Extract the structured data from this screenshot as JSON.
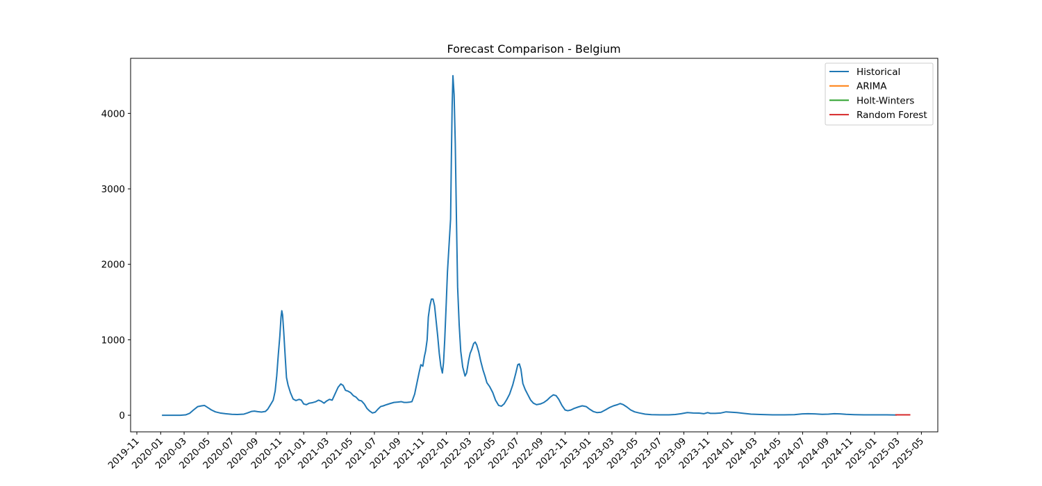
{
  "chart_data": {
    "type": "line",
    "title": "Forecast Comparison - Belgium",
    "xlabel": "",
    "ylabel": "",
    "x_ticks": [
      "2019-11",
      "2020-01",
      "2020-03",
      "2020-05",
      "2020-07",
      "2020-09",
      "2020-11",
      "2021-01",
      "2021-03",
      "2021-05",
      "2021-07",
      "2021-09",
      "2021-11",
      "2022-01",
      "2022-03",
      "2022-05",
      "2022-07",
      "2022-09",
      "2022-11",
      "2023-01",
      "2023-03",
      "2023-05",
      "2023-07",
      "2023-09",
      "2023-11",
      "2024-01",
      "2024-03",
      "2024-05",
      "2024-07",
      "2024-09",
      "2024-11",
      "2025-01",
      "2025-03",
      "2025-05"
    ],
    "y_ticks": [
      0,
      1000,
      2000,
      3000,
      4000
    ],
    "xlim": [
      "2019-10-16",
      "2025-06-12"
    ],
    "ylim": [
      -220,
      4730
    ],
    "grid": false,
    "legend_position": "top-right",
    "series": [
      {
        "name": "Historical",
        "color": "#1f77b4",
        "points": [
          [
            "2020-01-06",
            0
          ],
          [
            "2020-02-01",
            0
          ],
          [
            "2020-02-20",
            0
          ],
          [
            "2020-03-05",
            5
          ],
          [
            "2020-03-15",
            25
          ],
          [
            "2020-03-25",
            70
          ],
          [
            "2020-04-05",
            115
          ],
          [
            "2020-04-15",
            125
          ],
          [
            "2020-04-22",
            130
          ],
          [
            "2020-05-01",
            100
          ],
          [
            "2020-05-10",
            70
          ],
          [
            "2020-05-20",
            45
          ],
          [
            "2020-06-01",
            30
          ],
          [
            "2020-06-15",
            20
          ],
          [
            "2020-07-01",
            12
          ],
          [
            "2020-07-15",
            10
          ],
          [
            "2020-08-01",
            15
          ],
          [
            "2020-08-10",
            30
          ],
          [
            "2020-08-20",
            50
          ],
          [
            "2020-08-28",
            55
          ],
          [
            "2020-09-05",
            48
          ],
          [
            "2020-09-15",
            42
          ],
          [
            "2020-09-25",
            50
          ],
          [
            "2020-10-01",
            80
          ],
          [
            "2020-10-07",
            130
          ],
          [
            "2020-10-15",
            200
          ],
          [
            "2020-10-20",
            320
          ],
          [
            "2020-10-24",
            520
          ],
          [
            "2020-10-28",
            800
          ],
          [
            "2020-11-01",
            1050
          ],
          [
            "2020-11-04",
            1300
          ],
          [
            "2020-11-06",
            1385
          ],
          [
            "2020-11-08",
            1330
          ],
          [
            "2020-11-11",
            1100
          ],
          [
            "2020-11-15",
            750
          ],
          [
            "2020-11-18",
            500
          ],
          [
            "2020-11-22",
            400
          ],
          [
            "2020-11-28",
            300
          ],
          [
            "2020-12-05",
            215
          ],
          [
            "2020-12-12",
            195
          ],
          [
            "2020-12-20",
            210
          ],
          [
            "2020-12-26",
            200
          ],
          [
            "2021-01-01",
            150
          ],
          [
            "2021-01-08",
            140
          ],
          [
            "2021-01-15",
            160
          ],
          [
            "2021-01-22",
            165
          ],
          [
            "2021-02-01",
            180
          ],
          [
            "2021-02-08",
            200
          ],
          [
            "2021-02-15",
            185
          ],
          [
            "2021-02-22",
            160
          ],
          [
            "2021-03-01",
            190
          ],
          [
            "2021-03-08",
            210
          ],
          [
            "2021-03-15",
            200
          ],
          [
            "2021-03-22",
            280
          ],
          [
            "2021-03-30",
            370
          ],
          [
            "2021-04-06",
            415
          ],
          [
            "2021-04-12",
            395
          ],
          [
            "2021-04-18",
            330
          ],
          [
            "2021-04-24",
            320
          ],
          [
            "2021-05-01",
            300
          ],
          [
            "2021-05-08",
            260
          ],
          [
            "2021-05-15",
            240
          ],
          [
            "2021-05-22",
            200
          ],
          [
            "2021-05-29",
            190
          ],
          [
            "2021-06-05",
            150
          ],
          [
            "2021-06-12",
            90
          ],
          [
            "2021-06-19",
            55
          ],
          [
            "2021-06-26",
            30
          ],
          [
            "2021-07-03",
            40
          ],
          [
            "2021-07-10",
            80
          ],
          [
            "2021-07-17",
            115
          ],
          [
            "2021-07-24",
            125
          ],
          [
            "2021-08-01",
            140
          ],
          [
            "2021-08-10",
            155
          ],
          [
            "2021-08-20",
            170
          ],
          [
            "2021-08-30",
            175
          ],
          [
            "2021-09-08",
            180
          ],
          [
            "2021-09-15",
            170
          ],
          [
            "2021-09-22",
            170
          ],
          [
            "2021-09-30",
            175
          ],
          [
            "2021-10-05",
            180
          ],
          [
            "2021-10-12",
            280
          ],
          [
            "2021-10-18",
            430
          ],
          [
            "2021-10-24",
            580
          ],
          [
            "2021-10-28",
            670
          ],
          [
            "2021-11-02",
            650
          ],
          [
            "2021-11-06",
            780
          ],
          [
            "2021-11-09",
            850
          ],
          [
            "2021-11-13",
            1000
          ],
          [
            "2021-11-16",
            1300
          ],
          [
            "2021-11-20",
            1450
          ],
          [
            "2021-11-24",
            1540
          ],
          [
            "2021-11-28",
            1540
          ],
          [
            "2021-12-02",
            1450
          ],
          [
            "2021-12-06",
            1250
          ],
          [
            "2021-12-10",
            1050
          ],
          [
            "2021-12-14",
            820
          ],
          [
            "2021-12-18",
            650
          ],
          [
            "2021-12-22",
            560
          ],
          [
            "2021-12-25",
            700
          ],
          [
            "2021-12-28",
            1000
          ],
          [
            "2022-01-01",
            1500
          ],
          [
            "2022-01-04",
            1900
          ],
          [
            "2022-01-08",
            2250
          ],
          [
            "2022-01-12",
            2600
          ],
          [
            "2022-01-14",
            3400
          ],
          [
            "2022-01-16",
            4100
          ],
          [
            "2022-01-18",
            4500
          ],
          [
            "2022-01-21",
            4250
          ],
          [
            "2022-01-24",
            3600
          ],
          [
            "2022-01-27",
            2600
          ],
          [
            "2022-01-30",
            1700
          ],
          [
            "2022-02-03",
            1200
          ],
          [
            "2022-02-07",
            850
          ],
          [
            "2022-02-12",
            640
          ],
          [
            "2022-02-18",
            520
          ],
          [
            "2022-02-22",
            560
          ],
          [
            "2022-02-27",
            720
          ],
          [
            "2022-03-03",
            820
          ],
          [
            "2022-03-07",
            870
          ],
          [
            "2022-03-12",
            950
          ],
          [
            "2022-03-16",
            970
          ],
          [
            "2022-03-20",
            930
          ],
          [
            "2022-03-25",
            840
          ],
          [
            "2022-03-30",
            720
          ],
          [
            "2022-04-05",
            600
          ],
          [
            "2022-04-10",
            520
          ],
          [
            "2022-04-15",
            430
          ],
          [
            "2022-04-22",
            380
          ],
          [
            "2022-04-30",
            300
          ],
          [
            "2022-05-07",
            200
          ],
          [
            "2022-05-15",
            130
          ],
          [
            "2022-05-22",
            120
          ],
          [
            "2022-05-29",
            150
          ],
          [
            "2022-06-05",
            210
          ],
          [
            "2022-06-12",
            280
          ],
          [
            "2022-06-20",
            400
          ],
          [
            "2022-06-28",
            560
          ],
          [
            "2022-07-03",
            670
          ],
          [
            "2022-07-07",
            680
          ],
          [
            "2022-07-11",
            610
          ],
          [
            "2022-07-16",
            420
          ],
          [
            "2022-07-22",
            340
          ],
          [
            "2022-07-28",
            280
          ],
          [
            "2022-08-05",
            200
          ],
          [
            "2022-08-12",
            160
          ],
          [
            "2022-08-20",
            140
          ],
          [
            "2022-08-30",
            150
          ],
          [
            "2022-09-08",
            170
          ],
          [
            "2022-09-16",
            200
          ],
          [
            "2022-09-24",
            240
          ],
          [
            "2022-10-02",
            270
          ],
          [
            "2022-10-09",
            260
          ],
          [
            "2022-10-16",
            210
          ],
          [
            "2022-10-24",
            130
          ],
          [
            "2022-11-01",
            70
          ],
          [
            "2022-11-08",
            60
          ],
          [
            "2022-11-16",
            70
          ],
          [
            "2022-11-24",
            90
          ],
          [
            "2022-12-05",
            110
          ],
          [
            "2022-12-15",
            125
          ],
          [
            "2022-12-25",
            115
          ],
          [
            "2023-01-03",
            80
          ],
          [
            "2023-01-12",
            50
          ],
          [
            "2023-01-22",
            35
          ],
          [
            "2023-02-01",
            40
          ],
          [
            "2023-02-12",
            70
          ],
          [
            "2023-02-22",
            100
          ],
          [
            "2023-03-05",
            125
          ],
          [
            "2023-03-15",
            140
          ],
          [
            "2023-03-22",
            155
          ],
          [
            "2023-03-30",
            140
          ],
          [
            "2023-04-08",
            110
          ],
          [
            "2023-04-18",
            70
          ],
          [
            "2023-04-28",
            45
          ],
          [
            "2023-05-10",
            30
          ],
          [
            "2023-05-25",
            15
          ],
          [
            "2023-06-10",
            8
          ],
          [
            "2023-07-01",
            5
          ],
          [
            "2023-07-25",
            5
          ],
          [
            "2023-08-10",
            10
          ],
          [
            "2023-08-25",
            20
          ],
          [
            "2023-09-10",
            35
          ],
          [
            "2023-09-25",
            30
          ],
          [
            "2023-10-10",
            28
          ],
          [
            "2023-10-22",
            20
          ],
          [
            "2023-11-01",
            35
          ],
          [
            "2023-11-08",
            25
          ],
          [
            "2023-11-20",
            25
          ],
          [
            "2023-12-05",
            30
          ],
          [
            "2023-12-18",
            45
          ],
          [
            "2024-01-01",
            40
          ],
          [
            "2024-01-15",
            35
          ],
          [
            "2024-02-01",
            25
          ],
          [
            "2024-02-20",
            15
          ],
          [
            "2024-03-15",
            10
          ],
          [
            "2024-04-15",
            5
          ],
          [
            "2024-05-15",
            5
          ],
          [
            "2024-06-10",
            8
          ],
          [
            "2024-06-30",
            18
          ],
          [
            "2024-07-15",
            20
          ],
          [
            "2024-08-01",
            18
          ],
          [
            "2024-08-20",
            12
          ],
          [
            "2024-09-05",
            15
          ],
          [
            "2024-09-20",
            20
          ],
          [
            "2024-10-05",
            18
          ],
          [
            "2024-10-20",
            12
          ],
          [
            "2024-11-10",
            8
          ],
          [
            "2024-12-05",
            5
          ],
          [
            "2025-01-05",
            5
          ],
          [
            "2025-02-01",
            5
          ],
          [
            "2025-02-25",
            3
          ]
        ]
      },
      {
        "name": "ARIMA",
        "color": "#ff7f0e",
        "points": [
          [
            "2025-02-25",
            5
          ],
          [
            "2025-04-01",
            5
          ]
        ]
      },
      {
        "name": "Holt-Winters",
        "color": "#2ca02c",
        "points": [
          [
            "2025-02-25",
            5
          ],
          [
            "2025-04-01",
            5
          ]
        ]
      },
      {
        "name": "Random Forest",
        "color": "#d62728",
        "points": [
          [
            "2025-02-25",
            5
          ],
          [
            "2025-04-01",
            5
          ]
        ]
      }
    ]
  }
}
